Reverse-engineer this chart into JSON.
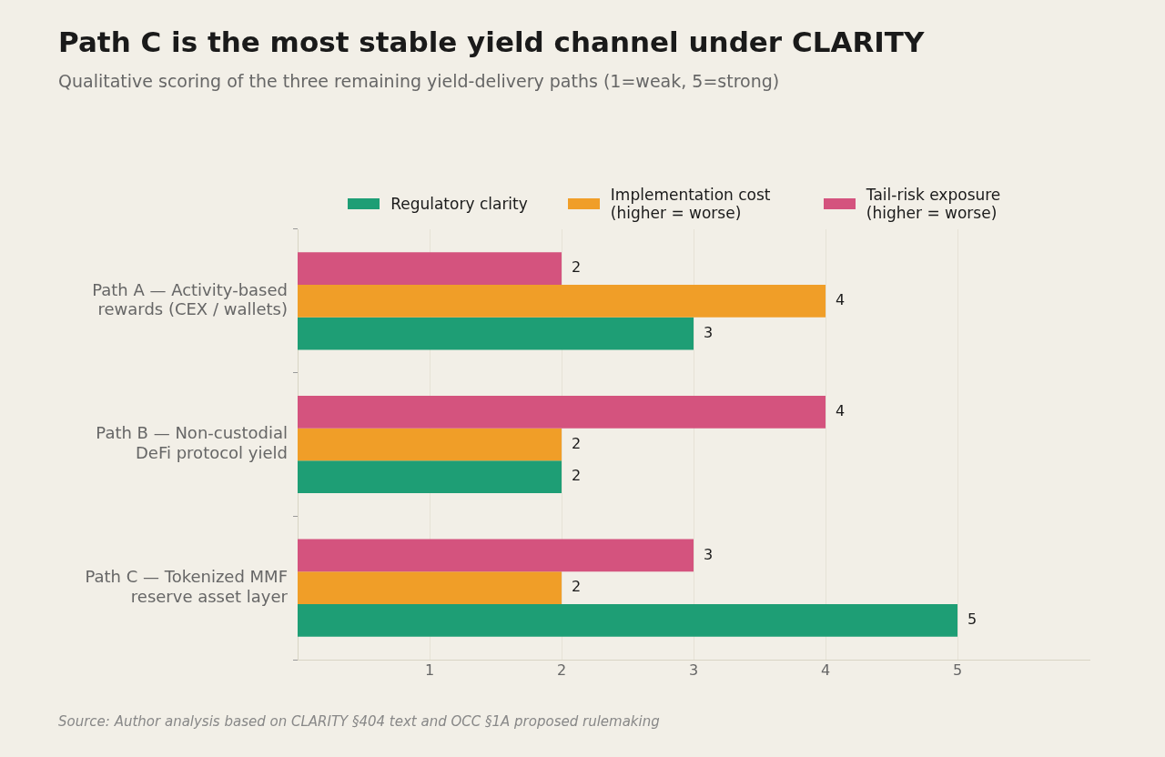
{
  "chart_data": {
    "type": "bar",
    "orientation": "horizontal",
    "title": "Path C is the most stable yield channel under CLARITY",
    "subtitle": "Qualitative scoring of the three remaining yield-delivery paths (1=weak, 5=strong)",
    "categories": [
      "Path A — Activity-based rewards (CEX / wallets)",
      "Path B — Non-custodial DeFi protocol yield",
      "Path C — Tokenized MMF reserve asset layer"
    ],
    "series": [
      {
        "name": "Regulatory clarity",
        "color": "#1e9e75",
        "values": [
          3,
          2,
          5
        ]
      },
      {
        "name": "Implementation cost (higher = worse)",
        "color": "#f09e28",
        "values": [
          4,
          2,
          2
        ]
      },
      {
        "name": "Tail-risk exposure (higher = worse)",
        "color": "#d4537e",
        "values": [
          2,
          4,
          3
        ]
      }
    ],
    "xlim": [
      0,
      6
    ],
    "xticks": [
      1,
      2,
      3,
      4,
      5
    ],
    "grid": "x",
    "legend": "top",
    "data_labels": true,
    "annotations": [
      "Source: Author analysis based on CLARITY §404 text and OCC §1A proposed rulemaking"
    ]
  }
}
